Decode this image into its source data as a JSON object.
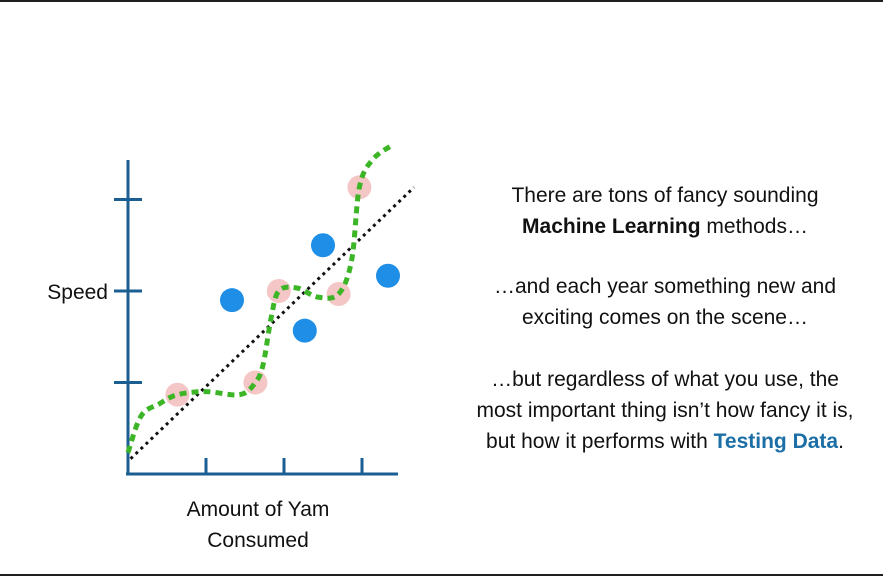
{
  "chart_data": {
    "type": "scatter",
    "xlabel": [
      "Amount of Yam",
      "Consumed"
    ],
    "ylabel": "Speed",
    "xlim": [
      0,
      10
    ],
    "ylim": [
      0,
      10
    ],
    "x_ticks": [
      3,
      6,
      9
    ],
    "y_ticks": [
      3,
      6,
      9
    ],
    "grid": false,
    "series": [
      {
        "role": "training",
        "color": "#f4c6c6",
        "points": [
          {
            "x": 1.9,
            "y": 2.6
          },
          {
            "x": 4.9,
            "y": 3.0
          },
          {
            "x": 5.8,
            "y": 6.0
          },
          {
            "x": 8.1,
            "y": 5.9
          },
          {
            "x": 8.9,
            "y": 9.4
          }
        ]
      },
      {
        "role": "testing",
        "color": "#1e8ee6",
        "points": [
          {
            "x": 4.0,
            "y": 5.7
          },
          {
            "x": 6.8,
            "y": 4.7
          },
          {
            "x": 7.5,
            "y": 7.5
          },
          {
            "x": 10.0,
            "y": 6.5
          }
        ]
      }
    ],
    "lines": [
      {
        "style": "dotted",
        "color": "#111111",
        "x": [
          0.1,
          11.0
        ],
        "y": [
          0.5,
          9.4
        ]
      },
      {
        "style": "dashed",
        "color": "#3cb526",
        "x": [
          0.0,
          0.5,
          1.2,
          1.9,
          3.0,
          4.3,
          4.9,
          5.2,
          5.5,
          5.8,
          6.5,
          7.3,
          8.1,
          8.6,
          8.9,
          9.4,
          10.2
        ],
        "y": [
          0.7,
          1.9,
          2.3,
          2.6,
          2.7,
          2.6,
          3.0,
          3.6,
          5.1,
          6.0,
          6.1,
          5.8,
          5.9,
          7.0,
          9.4,
          10.3,
          10.8
        ]
      }
    ]
  },
  "text": {
    "p1_l1": "There are tons of fancy sounding",
    "p1_l2_bold": "Machine Learning",
    "p1_l2_rest": " methods…",
    "p2_l1": "…and each year something new and",
    "p2_l2": "exciting comes on the scene…",
    "p3_l1": "…but regardless of what you use, the",
    "p3_l2": "most important thing isn’t how fancy it is,",
    "p3_l3_pre": "but how it performs with ",
    "p3_l3_bold": "Testing Data",
    "p3_l3_post": "."
  }
}
